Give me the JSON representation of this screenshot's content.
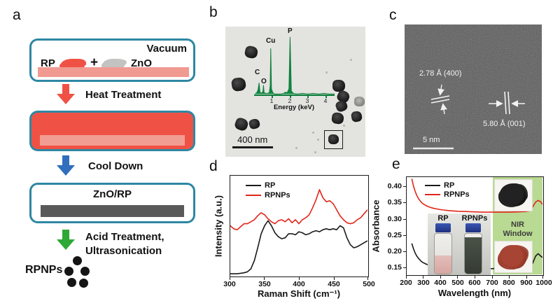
{
  "panels": {
    "a": "a",
    "b": "b",
    "c": "c",
    "d": "d",
    "e": "e"
  },
  "panel_a": {
    "vacuum_label": "Vacuum",
    "rp_label": "RP",
    "plus_sign": "+",
    "zno_label": "ZnO",
    "heat_label": "Heat Treatment",
    "cool_label": "Cool Down",
    "zno_rp_label": "ZnO/RP",
    "acid_label_line1": "Acid Treatment,",
    "acid_label_line2": "Ultrasonication",
    "product_label": "RPNPs",
    "colors": {
      "outline_teal": "#2e87a3",
      "red_fill": "#ef5245",
      "pink_slab": "#f09a92",
      "gray_slab": "#595959",
      "arrow_red": "#ef5245",
      "arrow_blue": "#2f6fbd",
      "arrow_green": "#2ea836"
    }
  },
  "panel_b": {
    "scale_bar_label": "400 nm"
  },
  "panel_c": {
    "spacing_label_1": "2.78 Å (400)",
    "spacing_label_2": "5.80 Å (001)",
    "scale_bar_label": "5 nm"
  },
  "chart_data": [
    {
      "type": "line",
      "title": "Raman spectra of RP and RPNPs",
      "xlabel": "Raman Shift (cm⁻¹)",
      "ylabel": "Intensity (a.u.)",
      "xlim": [
        300,
        500
      ],
      "ylim": [
        0,
        1
      ],
      "xticks": [
        "300",
        "350",
        "400",
        "450",
        "500"
      ],
      "legend": [
        "RP",
        "RPNPs"
      ],
      "grid": false,
      "legend_position": "top-left",
      "series": [
        {
          "name": "RP",
          "color": "#1a1a1a",
          "x": [
            300,
            305,
            310,
            315,
            320,
            325,
            330,
            335,
            340,
            345,
            350,
            355,
            360,
            365,
            370,
            375,
            380,
            385,
            390,
            395,
            400,
            405,
            410,
            415,
            420,
            425,
            430,
            435,
            440,
            445,
            450,
            455,
            460,
            465,
            470,
            475,
            480,
            485,
            490,
            495,
            500
          ],
          "y": [
            0.02,
            0.02,
            0.02,
            0.025,
            0.03,
            0.04,
            0.07,
            0.15,
            0.28,
            0.42,
            0.5,
            0.55,
            0.5,
            0.43,
            0.39,
            0.37,
            0.38,
            0.42,
            0.42,
            0.41,
            0.44,
            0.43,
            0.41,
            0.42,
            0.44,
            0.45,
            0.44,
            0.46,
            0.47,
            0.46,
            0.47,
            0.46,
            0.5,
            0.48,
            0.38,
            0.31,
            0.28,
            0.29,
            0.31,
            0.33,
            0.35
          ]
        },
        {
          "name": "RPNPs",
          "color": "#e22619",
          "x": [
            300,
            305,
            310,
            315,
            320,
            325,
            330,
            335,
            340,
            345,
            350,
            355,
            360,
            365,
            370,
            375,
            380,
            385,
            390,
            395,
            400,
            405,
            410,
            415,
            420,
            425,
            430,
            435,
            440,
            445,
            450,
            455,
            460,
            465,
            470,
            475,
            480,
            485,
            490,
            495,
            500
          ],
          "y": [
            0.5,
            0.47,
            0.46,
            0.49,
            0.52,
            0.52,
            0.54,
            0.56,
            0.6,
            0.63,
            0.61,
            0.57,
            0.54,
            0.52,
            0.55,
            0.56,
            0.54,
            0.57,
            0.53,
            0.56,
            0.52,
            0.56,
            0.58,
            0.61,
            0.68,
            0.76,
            0.86,
            0.78,
            0.74,
            0.75,
            0.72,
            0.66,
            0.6,
            0.56,
            0.53,
            0.52,
            0.53,
            0.56,
            0.58,
            0.62,
            0.66
          ]
        }
      ]
    },
    {
      "type": "line",
      "title": "UV-Vis-NIR absorbance of RP and RPNPs",
      "xlabel": "Wavelength (nm)",
      "ylabel": "Absorbance",
      "xlim": [
        200,
        1000
      ],
      "ylim": [
        0.125,
        0.43
      ],
      "xticks": [
        "200",
        "300",
        "400",
        "500",
        "600",
        "700",
        "800",
        "900",
        "1000"
      ],
      "yticks": [
        "0.40",
        "0.35",
        "0.30",
        "0.25",
        "0.20",
        "0.15"
      ],
      "legend": [
        "RP",
        "RPNPs"
      ],
      "grid": false,
      "legend_position": "top-left",
      "nir_window": {
        "label_line1": "NIR",
        "label_line2": "Window",
        "range_nm": [
          700,
          1000
        ]
      },
      "insets": {
        "vial_left_label": "RP",
        "vial_right_label": "RPNPs"
      },
      "series": [
        {
          "name": "RP",
          "color": "#1a1a1a",
          "x": [
            230,
            240,
            250,
            260,
            270,
            280,
            290,
            300,
            320,
            340,
            360,
            380,
            400,
            450,
            500,
            550,
            600,
            650,
            700,
            750,
            800,
            850,
            900,
            920,
            940,
            960,
            975,
            990,
            1000
          ],
          "y": [
            0.222,
            0.205,
            0.192,
            0.182,
            0.175,
            0.169,
            0.164,
            0.161,
            0.156,
            0.153,
            0.151,
            0.15,
            0.149,
            0.148,
            0.147,
            0.146,
            0.145,
            0.144,
            0.143,
            0.144,
            0.145,
            0.146,
            0.145,
            0.148,
            0.158,
            0.183,
            0.19,
            0.182,
            0.178
          ]
        },
        {
          "name": "RPNPs",
          "color": "#e22619",
          "x": [
            230,
            240,
            250,
            260,
            270,
            280,
            290,
            300,
            320,
            340,
            360,
            380,
            400,
            450,
            500,
            550,
            600,
            650,
            700,
            750,
            800,
            850,
            900,
            920,
            940,
            960,
            975,
            990,
            1000
          ],
          "y": [
            0.425,
            0.402,
            0.385,
            0.372,
            0.362,
            0.355,
            0.349,
            0.345,
            0.339,
            0.335,
            0.332,
            0.33,
            0.328,
            0.325,
            0.323,
            0.322,
            0.321,
            0.32,
            0.32,
            0.32,
            0.32,
            0.321,
            0.322,
            0.324,
            0.335,
            0.352,
            0.357,
            0.352,
            0.344
          ]
        }
      ]
    },
    {
      "type": "line",
      "title": "EDS spectrum inset",
      "xlabel": "Energy (keV)",
      "xlim": [
        0,
        4.5
      ],
      "ylim": [
        0,
        1.1
      ],
      "xticks": [
        "1",
        "2",
        "3",
        "4"
      ],
      "peak_labels": [
        "C",
        "O",
        "Cu",
        "P"
      ],
      "grid": false,
      "series": [
        {
          "name": "EDS",
          "color": "#0d7d3a",
          "fill": "#0f8840",
          "width": 1,
          "x": [
            0.05,
            0.15,
            0.22,
            0.277,
            0.33,
            0.42,
            0.5,
            0.525,
            0.56,
            0.65,
            0.75,
            0.85,
            0.9,
            0.93,
            0.97,
            1.05,
            1.15,
            1.3,
            1.5,
            1.65,
            1.75,
            1.85,
            1.95,
            2.01,
            2.08,
            2.2,
            2.4,
            2.7,
            3.0,
            3.3,
            3.6,
            3.9,
            4.2,
            4.5
          ],
          "y": [
            0.01,
            0.03,
            0.08,
            0.2,
            0.04,
            0.02,
            0.06,
            0.16,
            0.03,
            0.02,
            0.02,
            0.03,
            0.15,
            0.8,
            0.1,
            0.03,
            0.01,
            0.01,
            0.01,
            0.02,
            0.04,
            0.03,
            0.1,
            1.0,
            0.06,
            0.02,
            0.01,
            0.02,
            0.01,
            0.02,
            0.01,
            0.02,
            0.01,
            0.01
          ]
        }
      ]
    }
  ]
}
